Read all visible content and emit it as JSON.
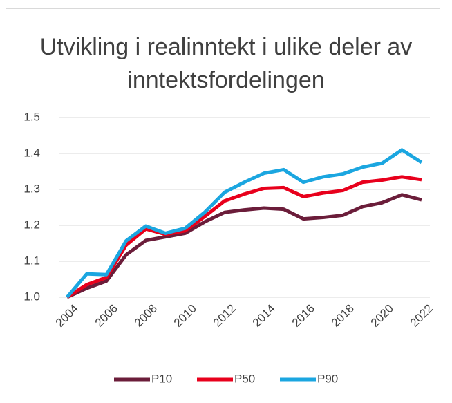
{
  "chart_data": {
    "type": "line",
    "title": "Utvikling i realinntekt i ulike deler av inntektsfordelingen",
    "x": [
      2004,
      2005,
      2006,
      2007,
      2008,
      2009,
      2010,
      2011,
      2012,
      2013,
      2014,
      2015,
      2016,
      2017,
      2018,
      2019,
      2020,
      2021,
      2022
    ],
    "xlim": [
      2004,
      2022
    ],
    "xticks": [
      2004,
      2006,
      2008,
      2010,
      2012,
      2014,
      2016,
      2018,
      2020,
      2022
    ],
    "ylim": [
      1.0,
      1.5
    ],
    "yticks": [
      {
        "value": 1.0,
        "label": "1.0"
      },
      1.1,
      1.2,
      1.3,
      1.4,
      1.5
    ],
    "grid": true,
    "legend": "bottom",
    "series": [
      {
        "name": "P10",
        "color": "#6b1d3a",
        "values": [
          1.0,
          1.025,
          1.045,
          1.118,
          1.158,
          1.168,
          1.178,
          1.21,
          1.236,
          1.243,
          1.248,
          1.245,
          1.218,
          1.222,
          1.228,
          1.252,
          1.263,
          1.285,
          1.271
        ]
      },
      {
        "name": "P50",
        "color": "#e8001c",
        "values": [
          1.0,
          1.035,
          1.055,
          1.145,
          1.19,
          1.175,
          1.185,
          1.225,
          1.268,
          1.287,
          1.303,
          1.305,
          1.28,
          1.29,
          1.297,
          1.32,
          1.326,
          1.335,
          1.327
        ]
      },
      {
        "name": "P90",
        "color": "#1ba6e0",
        "values": [
          1.0,
          1.065,
          1.063,
          1.157,
          1.198,
          1.178,
          1.192,
          1.237,
          1.292,
          1.32,
          1.345,
          1.355,
          1.32,
          1.335,
          1.343,
          1.362,
          1.373,
          1.41,
          1.375
        ]
      }
    ]
  }
}
